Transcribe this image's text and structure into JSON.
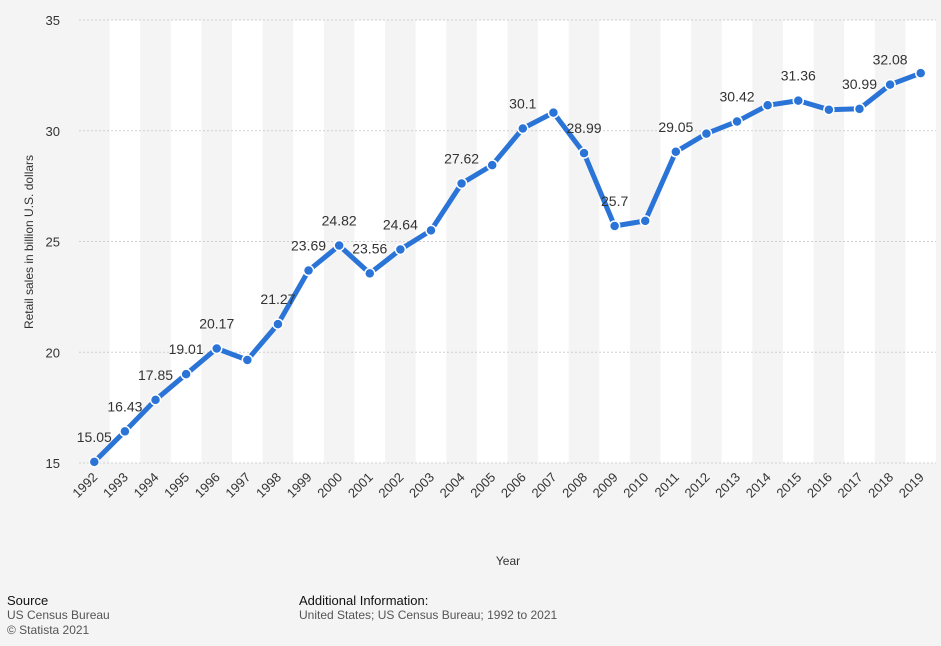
{
  "chart_data": {
    "type": "line",
    "title": "",
    "xlabel": "Year",
    "ylabel": "Retail sales in billion U.S. dollars",
    "ylim": [
      15,
      35
    ],
    "yticks": [
      15,
      20,
      25,
      30,
      35
    ],
    "grid": true,
    "categories": [
      "1992",
      "1993",
      "1994",
      "1995",
      "1996",
      "1997",
      "1998",
      "1999",
      "2000",
      "2001",
      "2002",
      "2003",
      "2004",
      "2005",
      "2006",
      "2007",
      "2008",
      "2009",
      "2010",
      "2011",
      "2012",
      "2013",
      "2014",
      "2015",
      "2016",
      "2017",
      "2018",
      "2019"
    ],
    "values": [
      15.05,
      16.43,
      17.85,
      19.01,
      20.17,
      19.65,
      21.27,
      23.69,
      24.82,
      23.56,
      24.64,
      25.5,
      27.62,
      28.45,
      30.1,
      30.82,
      28.99,
      25.7,
      25.93,
      29.05,
      29.87,
      30.42,
      31.15,
      31.36,
      30.95,
      30.99,
      32.08,
      32.6
    ],
    "data_labels": [
      "15.05",
      "16.43",
      "17.85",
      "19.01",
      "20.17",
      "",
      "21.27",
      "23.69",
      "24.82",
      "23.56",
      "24.64",
      "",
      "27.62",
      "",
      "30.1",
      "",
      "28.99",
      "25.7",
      "",
      "29.05",
      "",
      "30.42",
      "",
      "31.36",
      "",
      "30.99",
      "32.08",
      ""
    ],
    "line_color": "#2a74d8"
  },
  "footer": {
    "source_heading": "Source",
    "source_line1": "US Census Bureau",
    "source_line2": "© Statista 2021",
    "info_heading": "Additional Information:",
    "info_text": "United States; US Census Bureau; 1992 to 2021"
  }
}
